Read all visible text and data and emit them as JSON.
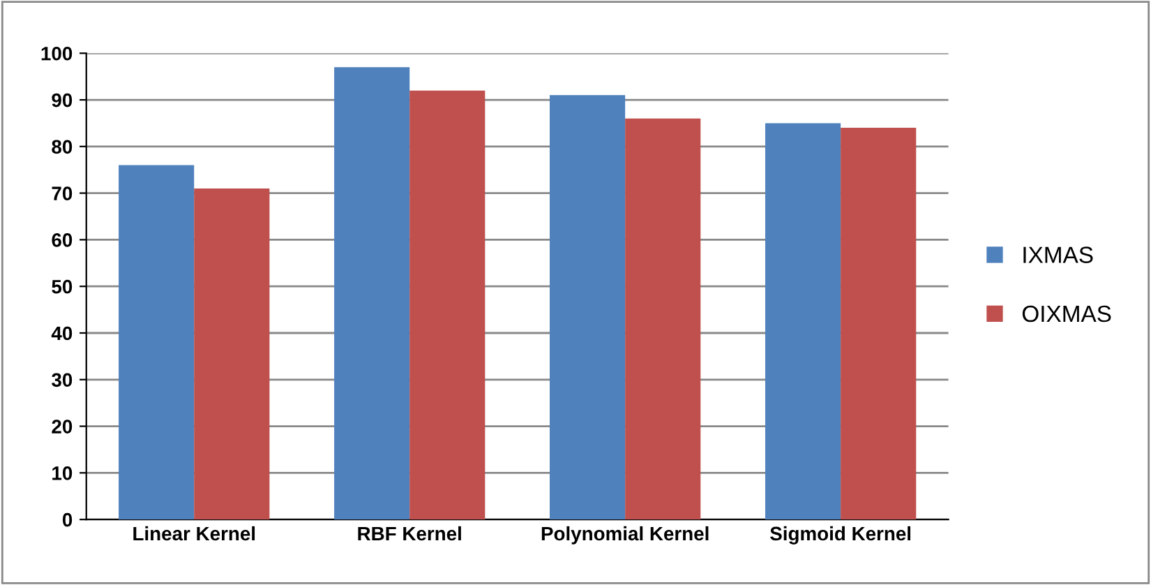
{
  "chart_data": {
    "type": "bar",
    "categories": [
      "Linear Kernel",
      "RBF Kernel",
      "Polynomial Kernel",
      "Sigmoid Kernel"
    ],
    "series": [
      {
        "name": "IXMAS",
        "color": "#4f81bd",
        "values": [
          76,
          97,
          91,
          85
        ]
      },
      {
        "name": "OIXMAS",
        "color": "#c0504d",
        "values": [
          71,
          92,
          86,
          84
        ]
      }
    ],
    "ylim": [
      0,
      100
    ],
    "yticks": [
      0,
      10,
      20,
      30,
      40,
      50,
      60,
      70,
      80,
      90,
      100
    ],
    "grid": "y",
    "legend": "right"
  }
}
